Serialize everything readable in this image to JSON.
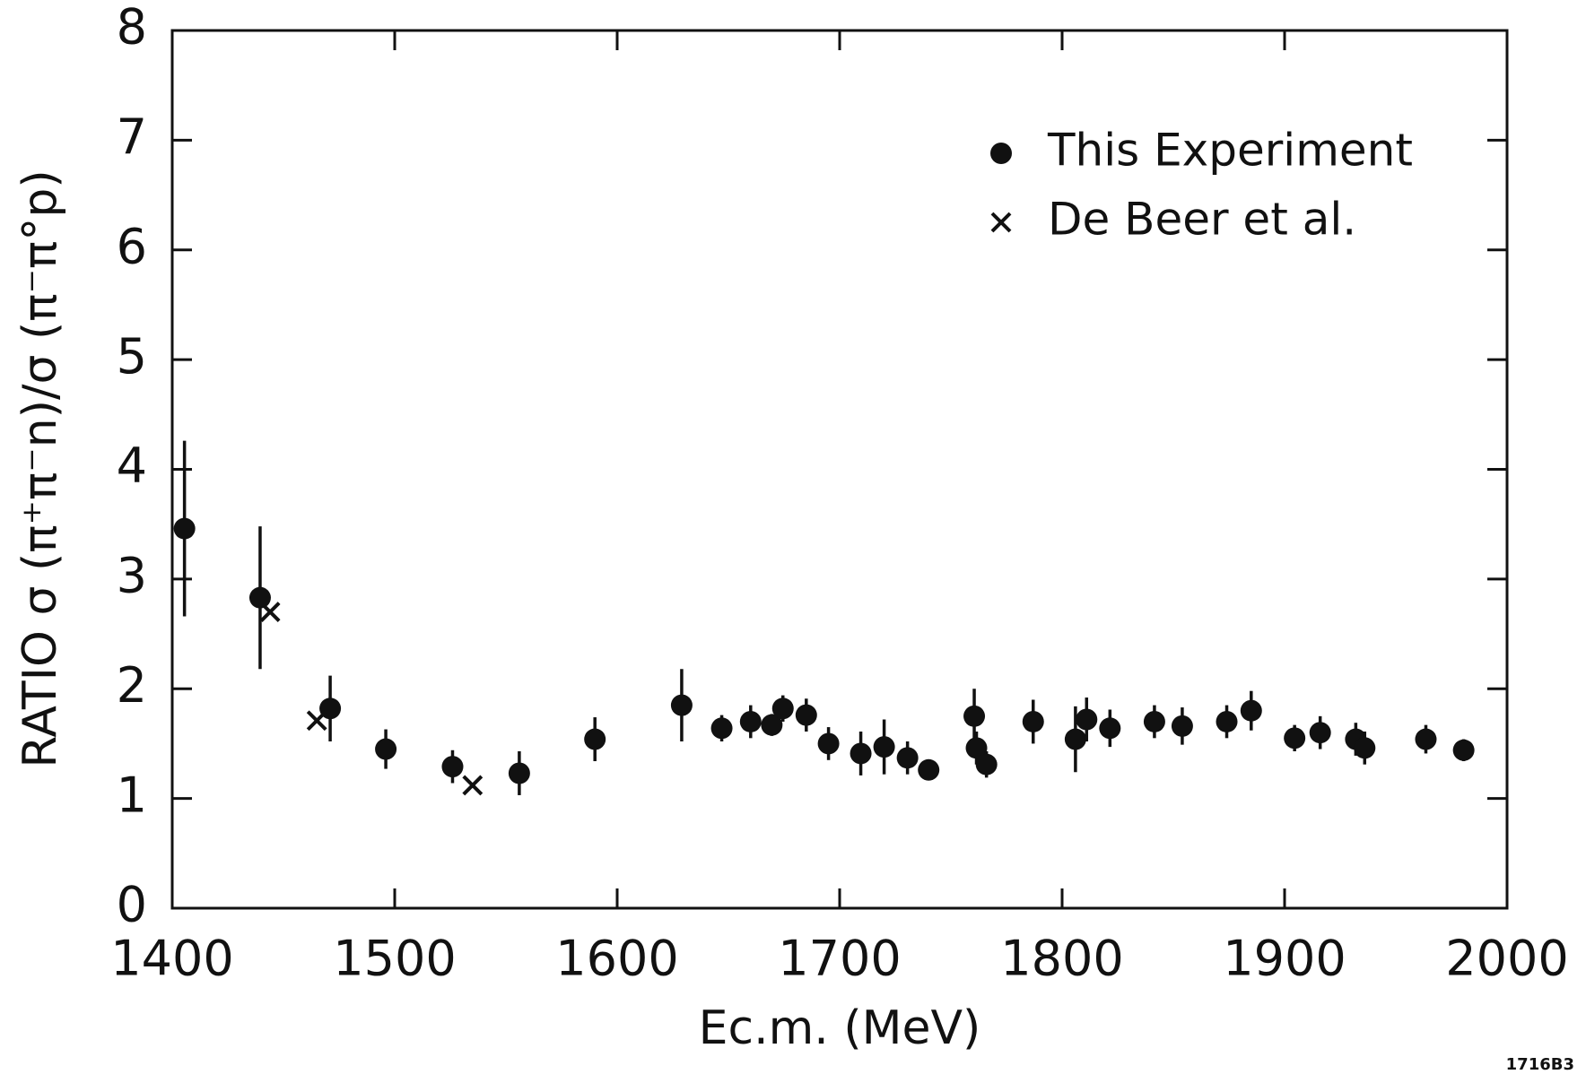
{
  "chart_data": {
    "type": "scatter",
    "xlabel": "Ec.m. (MeV)",
    "ylabel": "RATIO σ (π⁺π⁻n)/σ (π⁻π°p)",
    "annotation": "1716B3",
    "xlim": [
      1400,
      2000
    ],
    "xticks": [
      1400,
      1500,
      1600,
      1700,
      1800,
      1900,
      2000
    ],
    "ylim": [
      0,
      8
    ],
    "yticks": [
      0,
      1,
      2,
      3,
      4,
      5,
      6,
      7,
      8
    ],
    "legend": "upper right",
    "series": [
      {
        "name": "This Experiment",
        "marker": "circle",
        "color": "#111111",
        "x": [
          1405.5,
          1439.5,
          1471,
          1496,
          1526,
          1556,
          1590,
          1629,
          1647,
          1660,
          1669.5,
          1674.5,
          1685,
          1695,
          1709.5,
          1720,
          1730.5,
          1740,
          1760.5,
          1761.5,
          1766,
          1787,
          1806,
          1811,
          1821.5,
          1841.5,
          1854,
          1874,
          1885,
          1904.5,
          1916,
          1932,
          1936,
          1963.5,
          1980.5
        ],
        "values": [
          3.46,
          2.83,
          1.82,
          1.45,
          1.29,
          1.23,
          1.54,
          1.85,
          1.64,
          1.7,
          1.67,
          1.82,
          1.76,
          1.5,
          1.41,
          1.47,
          1.37,
          1.26,
          1.75,
          1.46,
          1.31,
          1.7,
          1.54,
          1.72,
          1.64,
          1.7,
          1.66,
          1.7,
          1.8,
          1.55,
          1.6,
          1.54,
          1.46,
          1.54,
          1.44
        ],
        "errors": [
          0.8,
          0.65,
          0.3,
          0.18,
          0.15,
          0.2,
          0.2,
          0.33,
          0.12,
          0.15,
          0.1,
          0.12,
          0.15,
          0.15,
          0.2,
          0.25,
          0.15,
          0.05,
          0.25,
          0.15,
          0.12,
          0.2,
          0.3,
          0.2,
          0.17,
          0.15,
          0.17,
          0.15,
          0.18,
          0.12,
          0.15,
          0.15,
          0.15,
          0.13,
          0.1
        ]
      },
      {
        "name": "De Beer et al.",
        "marker": "cross",
        "color": "#111111",
        "x": [
          1444,
          1465,
          1535
        ],
        "values": [
          2.7,
          1.71,
          1.12
        ]
      }
    ]
  }
}
